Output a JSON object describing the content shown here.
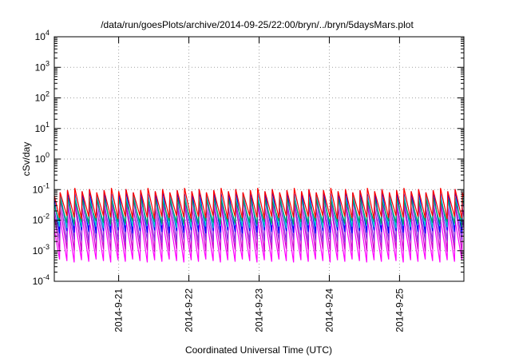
{
  "chart_data": {
    "type": "line",
    "title": "/data/run/goesPlots/archive/2014-09-25/22:00/bryn/../bryn/5daysMars.plot",
    "xlabel": "Coordinated Universal Time (UTC)",
    "ylabel": "cSv/day",
    "y_scale": "log",
    "ylim": [
      0.0001,
      10000
    ],
    "y_ticks": [
      {
        "base": "10",
        "exp": "-4"
      },
      {
        "base": "10",
        "exp": "-3"
      },
      {
        "base": "10",
        "exp": "-2"
      },
      {
        "base": "10",
        "exp": "-1"
      },
      {
        "base": "10",
        "exp": "0"
      },
      {
        "base": "10",
        "exp": "1"
      },
      {
        "base": "10",
        "exp": "2"
      },
      {
        "base": "10",
        "exp": "3"
      },
      {
        "base": "10",
        "exp": "4"
      }
    ],
    "xlim": [
      "2014-09-20 02:00",
      "2014-09-25 22:00"
    ],
    "x_ticks": [
      "2014-9-21",
      "2014-9-22",
      "2014-9-23",
      "2014-9-24",
      "2014-9-25"
    ],
    "grid": true,
    "legend": "none",
    "series_pattern": {
      "description_of_values": "sawtooth oscillation, period ~2.5 hours, 5 days",
      "period_hours": 2.5
    },
    "series": [
      {
        "color": "#ff00ff",
        "peak": 0.012,
        "trough": 0.00045
      },
      {
        "color": "#cc00cc",
        "peak": 0.03,
        "trough": 0.001
      },
      {
        "color": "#8a2be2",
        "peak": 0.05,
        "trough": 0.002
      },
      {
        "color": "#0000ff",
        "peak": 0.09,
        "trough": 0.004
      },
      {
        "color": "#00cccc",
        "peak": 0.06,
        "trough": 0.006
      },
      {
        "color": "#009966",
        "peak": 0.05,
        "trough": 0.008
      },
      {
        "color": "#ff0000",
        "peak": 0.1,
        "trough": 0.012
      }
    ],
    "colors": {
      "frame": "#000000",
      "grid": "#a0a0a0"
    }
  }
}
